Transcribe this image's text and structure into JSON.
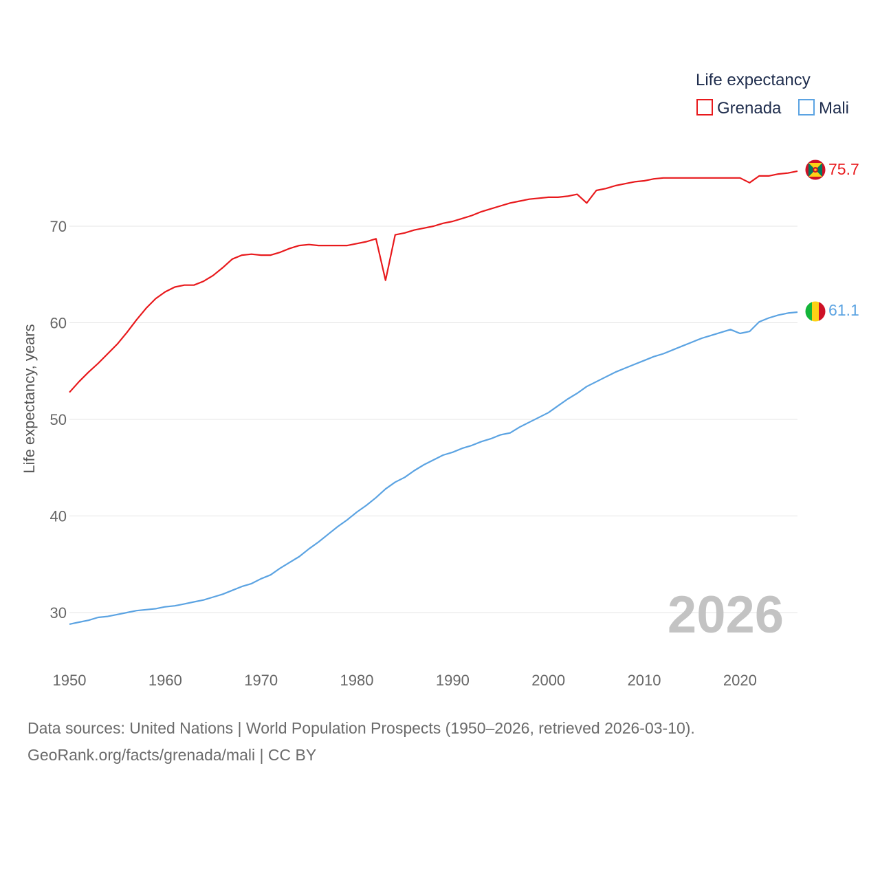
{
  "chart_data": {
    "type": "line",
    "title": "",
    "xlabel": "",
    "ylabel": "Life expectancy, years",
    "xlim": [
      1950,
      2026
    ],
    "ylim": [
      25,
      79
    ],
    "yticks": [
      30,
      40,
      50,
      60,
      70
    ],
    "xticks": [
      1950,
      1960,
      1970,
      1980,
      1990,
      2000,
      2010,
      2020
    ],
    "grid": true,
    "legend": {
      "title": "Life expectancy",
      "placement": "top-right"
    },
    "current_year_label": "2026",
    "x": [
      1950,
      1951,
      1952,
      1953,
      1954,
      1955,
      1956,
      1957,
      1958,
      1959,
      1960,
      1961,
      1962,
      1963,
      1964,
      1965,
      1966,
      1967,
      1968,
      1969,
      1970,
      1971,
      1972,
      1973,
      1974,
      1975,
      1976,
      1977,
      1978,
      1979,
      1980,
      1981,
      1982,
      1983,
      1984,
      1985,
      1986,
      1987,
      1988,
      1989,
      1990,
      1991,
      1992,
      1993,
      1994,
      1995,
      1996,
      1997,
      1998,
      1999,
      2000,
      2001,
      2002,
      2003,
      2004,
      2005,
      2006,
      2007,
      2008,
      2009,
      2010,
      2011,
      2012,
      2013,
      2014,
      2015,
      2016,
      2017,
      2018,
      2019,
      2020,
      2021,
      2022,
      2023,
      2024,
      2025,
      2026
    ],
    "series": [
      {
        "name": "Grenada",
        "color": "#e8191c",
        "end_label": "75.7",
        "flag": "grenada-flag",
        "values": [
          52.8,
          53.9,
          54.9,
          55.8,
          56.8,
          57.8,
          59.0,
          60.3,
          61.5,
          62.5,
          63.2,
          63.7,
          63.9,
          63.9,
          64.3,
          64.9,
          65.7,
          66.6,
          67.0,
          67.1,
          67.0,
          67.0,
          67.3,
          67.7,
          68.0,
          68.1,
          68.0,
          68.0,
          68.0,
          68.0,
          68.2,
          68.4,
          68.7,
          64.4,
          69.1,
          69.3,
          69.6,
          69.8,
          70.0,
          70.3,
          70.5,
          70.8,
          71.1,
          71.5,
          71.8,
          72.1,
          72.4,
          72.6,
          72.8,
          72.9,
          73.0,
          73.0,
          73.1,
          73.3,
          72.4,
          73.7,
          73.9,
          74.2,
          74.4,
          74.6,
          74.7,
          74.9,
          75.0,
          75.0,
          75.0,
          75.0,
          75.0,
          75.0,
          75.0,
          75.0,
          75.0,
          74.5,
          75.2,
          75.2,
          75.4,
          75.5,
          75.7
        ]
      },
      {
        "name": "Mali",
        "color": "#5ba3e2",
        "end_label": "61.1",
        "flag": "mali-flag",
        "values": [
          28.8,
          29.0,
          29.2,
          29.5,
          29.6,
          29.8,
          30.0,
          30.2,
          30.3,
          30.4,
          30.6,
          30.7,
          30.9,
          31.1,
          31.3,
          31.6,
          31.9,
          32.3,
          32.7,
          33.0,
          33.5,
          33.9,
          34.6,
          35.2,
          35.8,
          36.6,
          37.3,
          38.1,
          38.9,
          39.6,
          40.4,
          41.1,
          41.9,
          42.8,
          43.5,
          44.0,
          44.7,
          45.3,
          45.8,
          46.3,
          46.6,
          47.0,
          47.3,
          47.7,
          48.0,
          48.4,
          48.6,
          49.2,
          49.7,
          50.2,
          50.7,
          51.4,
          52.1,
          52.7,
          53.4,
          53.9,
          54.4,
          54.9,
          55.3,
          55.7,
          56.1,
          56.5,
          56.8,
          57.2,
          57.6,
          58.0,
          58.4,
          58.7,
          59.0,
          59.3,
          58.9,
          59.1,
          60.1,
          60.5,
          60.8,
          61.0,
          61.1
        ]
      }
    ]
  },
  "footer": {
    "sources": "Data sources: United Nations | World Population Prospects (1950–2026, retrieved 2026-03-10).",
    "site": "GeoRank.org/facts/grenada/mali | CC BY"
  }
}
